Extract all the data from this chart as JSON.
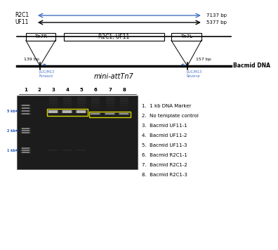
{
  "bg_color": "#ffffff",
  "r2c1_label": "R2C1",
  "r2c1_size": "7137 bp",
  "r2c1_color": "#4472c4",
  "uf11_label": "UF11",
  "uf11_size": "5377 bp",
  "uf11_color": "#000000",
  "tn7r": "Tn7R",
  "tn7_mid": "R2C1, UF11",
  "tn7l": "Tn7L",
  "bp_left": "139 bp",
  "bp_right": "157 bp",
  "attTn7": "mini-attTn7",
  "bacmid_label": "Bacmid DNA",
  "puc_fwd": "pUC/M13\nForward",
  "puc_rev": "pUC/M13\nReverse",
  "lane_labels": [
    "1",
    "2",
    "3",
    "4",
    "5",
    "6",
    "7",
    "8"
  ],
  "marker_labels": [
    "5 kb",
    "2 kb",
    "1 kb"
  ],
  "legend": [
    "1.  1 kb DNA Marker",
    "2.  No template control",
    "3.  Bacmid UF11-1",
    "4.  Bacmid UF11-2",
    "5.  Bacmid UF11-3",
    "6.  Bacmid R2C1-1",
    "7.  Bacmid R2C1-2",
    "8.  Bacmid R2C1-3"
  ]
}
